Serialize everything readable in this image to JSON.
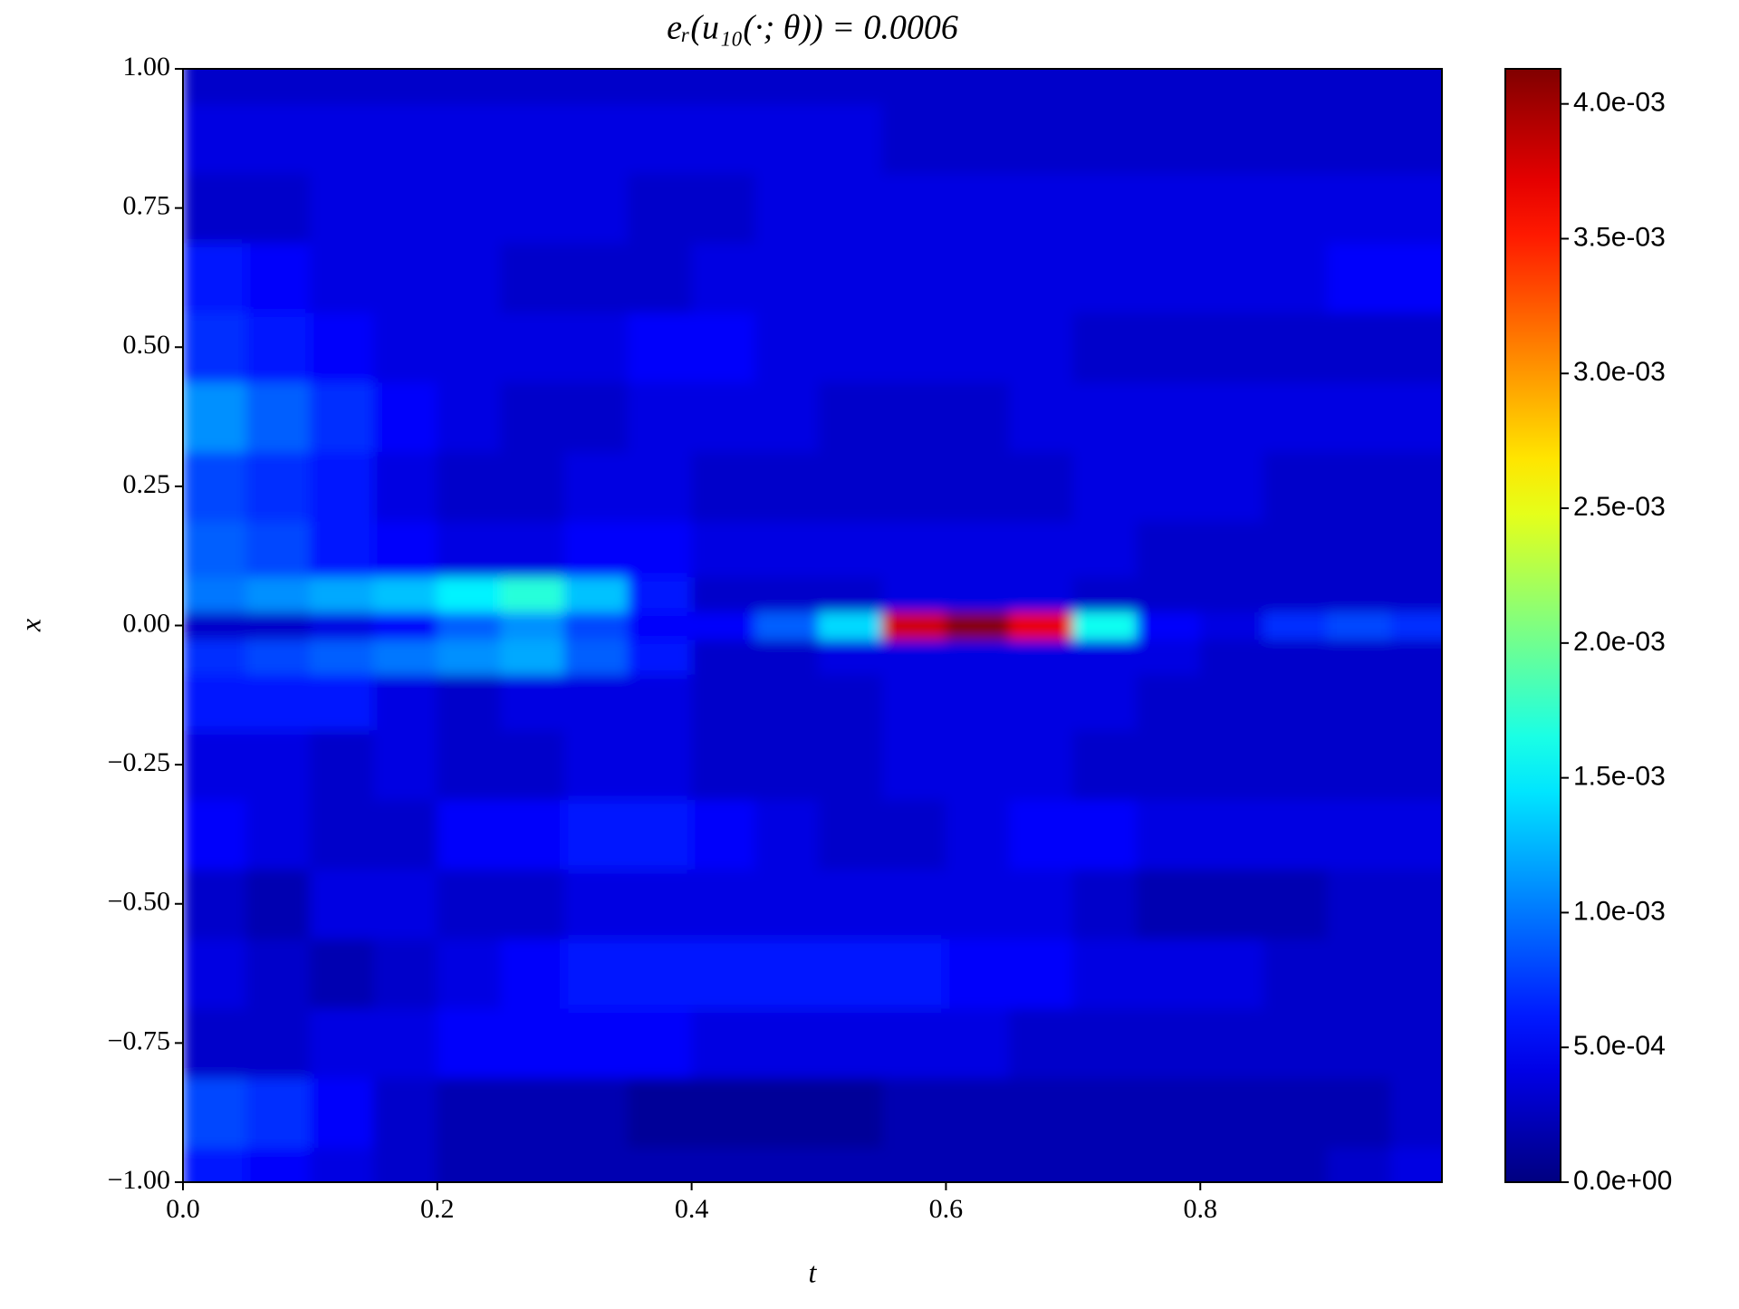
{
  "chart_data": {
    "type": "heatmap",
    "title": "eᵣ(u₁₀(·; θ)) = 0.0006",
    "x_label": "t",
    "y_label": "x",
    "xlim": [
      0,
      0.99
    ],
    "ylim": [
      -1,
      1
    ],
    "xticks": [
      {
        "value": 0,
        "label": "0.0"
      },
      0.2,
      0.4,
      0.6,
      0.8
    ],
    "yticks": [
      {
        "value": -1,
        "label": "−1.00"
      },
      {
        "value": -0.75,
        "label": "−0.75"
      },
      {
        "value": -0.5,
        "label": "−0.50"
      },
      {
        "value": -0.25,
        "label": "−0.25"
      },
      {
        "value": 0,
        "label": "0.00"
      },
      {
        "value": 0.25,
        "label": "0.25"
      },
      {
        "value": 0.5,
        "label": "0.50"
      },
      {
        "value": 0.75,
        "label": "0.75"
      },
      {
        "value": 1,
        "label": "1.00"
      }
    ],
    "colormap": "jet",
    "zlim": [
      0,
      0.00413
    ],
    "zticks": [
      {
        "value": 0,
        "label": "0.0e+00"
      },
      {
        "value": 0.0005,
        "label": "5.0e-04"
      },
      {
        "value": 0.001,
        "label": "1.0e-03"
      },
      {
        "value": 0.0015,
        "label": "1.5e-03"
      },
      {
        "value": 0.002,
        "label": "2.0e-03"
      },
      {
        "value": 0.0025,
        "label": "2.5e-03"
      },
      {
        "value": 0.003,
        "label": "3.0e-03"
      },
      {
        "value": 0.0035,
        "label": "3.5e-03"
      },
      {
        "value": 0.004,
        "label": "4.0e-03"
      }
    ],
    "x": [
      0.025,
      0.075,
      0.125,
      0.175,
      0.225,
      0.275,
      0.325,
      0.375,
      0.425,
      0.475,
      0.525,
      0.575,
      0.625,
      0.675,
      0.725,
      0.775,
      0.825,
      0.875,
      0.925,
      0.975
    ],
    "y": [
      -1,
      -0.875,
      -0.75,
      -0.625,
      -0.5,
      -0.375,
      -0.25,
      -0.125,
      -0.05,
      0,
      0.05,
      0.125,
      0.25,
      0.375,
      0.5,
      0.625,
      0.75,
      0.875,
      1
    ],
    "z": [
      [
        0.0006,
        0.0005,
        0.0004,
        0.0003,
        0.0002,
        0.0002,
        0.0002,
        0.0002,
        0.0002,
        0.0002,
        0.0002,
        0.0002,
        0.0002,
        0.0002,
        0.0002,
        0.0002,
        0.0002,
        0.0002,
        0.0003,
        0.0004
      ],
      [
        0.0008,
        0.0007,
        0.0005,
        0.0003,
        0.0002,
        0.0002,
        0.0002,
        0.0001,
        0.0001,
        0.0001,
        0.0001,
        0.0002,
        0.0002,
        0.0002,
        0.0002,
        0.0002,
        0.0002,
        0.0002,
        0.0002,
        0.0003
      ],
      [
        0.0003,
        0.0003,
        0.0004,
        0.0004,
        0.0005,
        0.0005,
        0.0005,
        0.0005,
        0.0004,
        0.0004,
        0.0004,
        0.0004,
        0.0004,
        0.0003,
        0.0003,
        0.0003,
        0.0003,
        0.0003,
        0.0003,
        0.0003
      ],
      [
        0.0004,
        0.0003,
        0.0002,
        0.0003,
        0.0004,
        0.0005,
        0.0006,
        0.0006,
        0.0006,
        0.0006,
        0.0006,
        0.0006,
        0.0005,
        0.0005,
        0.0004,
        0.0004,
        0.0004,
        0.0003,
        0.0003,
        0.0003
      ],
      [
        0.0003,
        0.0002,
        0.0004,
        0.0004,
        0.0003,
        0.0003,
        0.0004,
        0.0004,
        0.0004,
        0.0004,
        0.0004,
        0.0004,
        0.0004,
        0.0004,
        0.0003,
        0.0002,
        0.0002,
        0.0002,
        0.0003,
        0.0003
      ],
      [
        0.0005,
        0.0004,
        0.0003,
        0.0003,
        0.0005,
        0.0005,
        0.0006,
        0.0006,
        0.0005,
        0.0004,
        0.0003,
        0.0003,
        0.0004,
        0.0005,
        0.0005,
        0.0004,
        0.0004,
        0.0004,
        0.0004,
        0.0004
      ],
      [
        0.0004,
        0.0004,
        0.0003,
        0.0004,
        0.0003,
        0.0003,
        0.0004,
        0.0004,
        0.0003,
        0.0003,
        0.0003,
        0.0004,
        0.0004,
        0.0004,
        0.0003,
        0.0003,
        0.0003,
        0.0003,
        0.0003,
        0.0003
      ],
      [
        0.0006,
        0.0006,
        0.0006,
        0.0004,
        0.0003,
        0.0004,
        0.0004,
        0.0004,
        0.0003,
        0.0003,
        0.0003,
        0.0004,
        0.0004,
        0.0004,
        0.0004,
        0.0003,
        0.0003,
        0.0003,
        0.0003,
        0.0003
      ],
      [
        0.0007,
        0.0008,
        0.0009,
        0.001,
        0.0011,
        0.0012,
        0.0009,
        0.0006,
        0.0003,
        0.0003,
        0.0004,
        0.0004,
        0.0004,
        0.0004,
        0.0004,
        0.0004,
        0.0003,
        0.0003,
        0.0003,
        0.0003
      ],
      [
        0.0003,
        0.0003,
        0.0004,
        0.0005,
        0.0009,
        0.0011,
        0.0008,
        0.0005,
        0.0005,
        0.0009,
        0.0014,
        0.0038,
        0.0041,
        0.0037,
        0.0016,
        0.0005,
        0.0004,
        0.0007,
        0.0008,
        0.0007
      ],
      [
        0.001,
        0.0011,
        0.0012,
        0.0013,
        0.0015,
        0.0017,
        0.0013,
        0.0006,
        0.0003,
        0.0003,
        0.0003,
        0.0004,
        0.0004,
        0.0004,
        0.0003,
        0.0003,
        0.0003,
        0.0003,
        0.0003,
        0.0003
      ],
      [
        0.0009,
        0.0008,
        0.0006,
        0.0005,
        0.0004,
        0.0004,
        0.0005,
        0.0005,
        0.0004,
        0.0004,
        0.0004,
        0.0004,
        0.0004,
        0.0004,
        0.0004,
        0.0003,
        0.0003,
        0.0003,
        0.0003,
        0.0003
      ],
      [
        0.0008,
        0.0007,
        0.0006,
        0.0004,
        0.0003,
        0.0003,
        0.0004,
        0.0004,
        0.0003,
        0.0003,
        0.0003,
        0.0003,
        0.0003,
        0.0003,
        0.0004,
        0.0004,
        0.0004,
        0.0003,
        0.0003,
        0.0003
      ],
      [
        0.0011,
        0.0009,
        0.0007,
        0.0005,
        0.0004,
        0.0003,
        0.0003,
        0.0004,
        0.0004,
        0.0004,
        0.0003,
        0.0003,
        0.0003,
        0.0004,
        0.0004,
        0.0004,
        0.0004,
        0.0004,
        0.0004,
        0.0004
      ],
      [
        0.0007,
        0.0006,
        0.0005,
        0.0004,
        0.0004,
        0.0004,
        0.0004,
        0.0005,
        0.0005,
        0.0004,
        0.0004,
        0.0004,
        0.0004,
        0.0004,
        0.0003,
        0.0003,
        0.0003,
        0.0003,
        0.0003,
        0.0003
      ],
      [
        0.0006,
        0.0005,
        0.0004,
        0.0004,
        0.0004,
        0.0003,
        0.0003,
        0.0003,
        0.0004,
        0.0004,
        0.0004,
        0.0004,
        0.0004,
        0.0004,
        0.0004,
        0.0004,
        0.0004,
        0.0004,
        0.0005,
        0.0005
      ],
      [
        0.0003,
        0.0003,
        0.0004,
        0.0004,
        0.0004,
        0.0004,
        0.0004,
        0.0003,
        0.0003,
        0.0004,
        0.0004,
        0.0004,
        0.0004,
        0.0004,
        0.0004,
        0.0004,
        0.0004,
        0.0004,
        0.0004,
        0.0004
      ],
      [
        0.0004,
        0.0004,
        0.0004,
        0.0004,
        0.0004,
        0.0004,
        0.0004,
        0.0004,
        0.0004,
        0.0004,
        0.0004,
        0.0003,
        0.0003,
        0.0003,
        0.0003,
        0.0003,
        0.0003,
        0.0003,
        0.0003,
        0.0003
      ],
      [
        0.0003,
        0.0003,
        0.0003,
        0.0003,
        0.0003,
        0.0003,
        0.0003,
        0.0003,
        0.0003,
        0.0003,
        0.0003,
        0.0003,
        0.0003,
        0.0003,
        0.0003,
        0.0003,
        0.0003,
        0.0003,
        0.0003,
        0.0003
      ]
    ]
  }
}
